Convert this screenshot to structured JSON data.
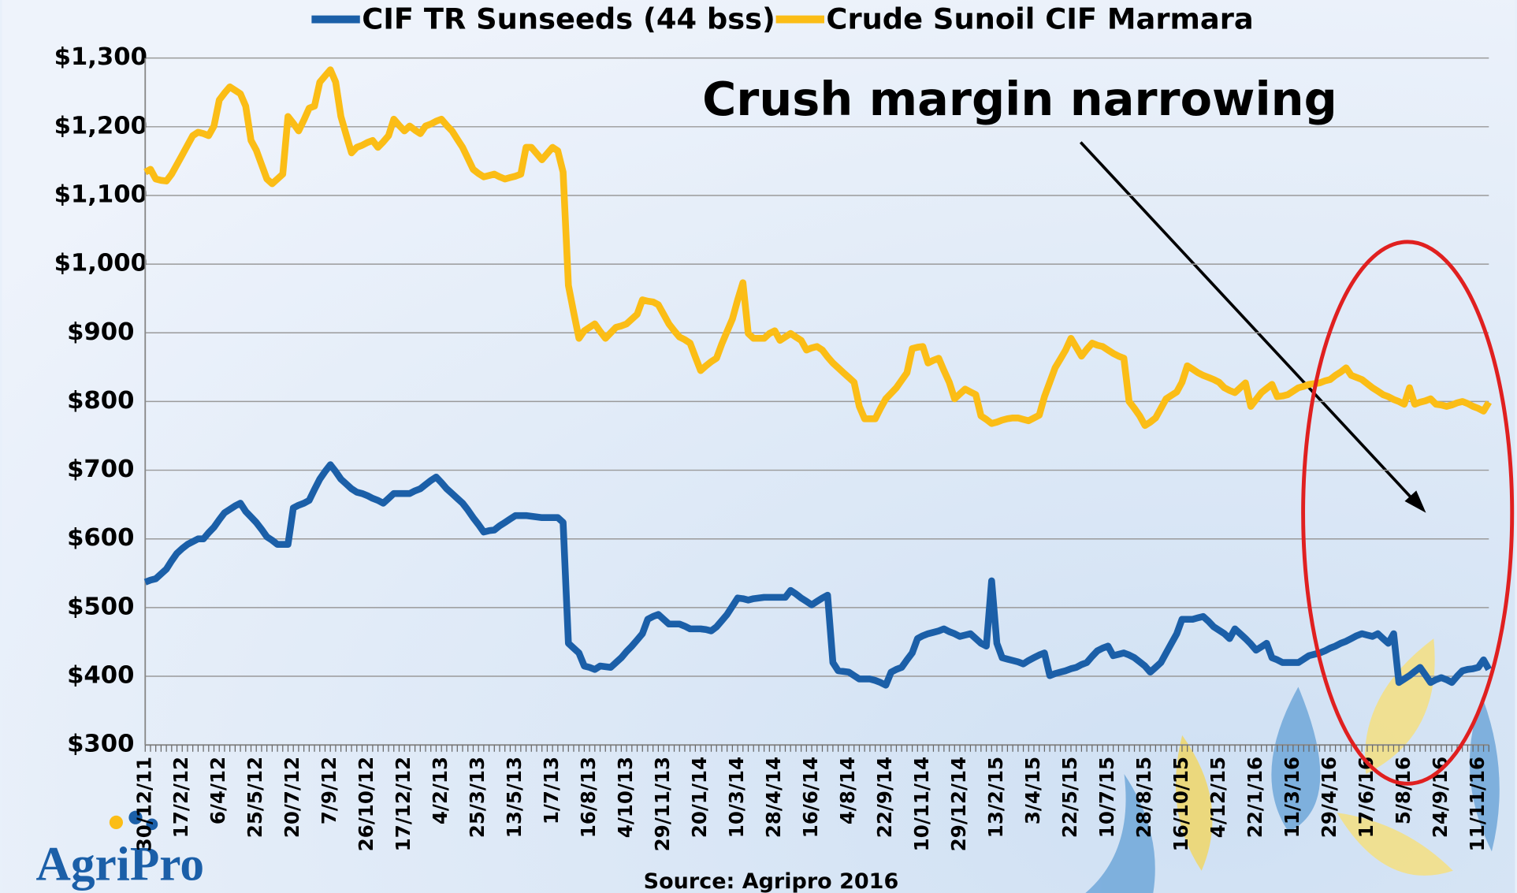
{
  "chart_data": {
    "type": "line",
    "annotation": "Crush margin narrowing",
    "source": "Source: Agripro 2016",
    "logo": "AgriPro",
    "ylim": [
      300,
      1300
    ],
    "yticks": [
      {
        "value": 300,
        "label": "$300"
      },
      {
        "value": 400,
        "label": "$400"
      },
      {
        "value": 500,
        "label": "$500"
      },
      {
        "value": 600,
        "label": "$600"
      },
      {
        "value": 700,
        "label": "$700"
      },
      {
        "value": 800,
        "label": "$800"
      },
      {
        "value": 900,
        "label": "$900"
      },
      {
        "value": 1000,
        "label": "$1,000"
      },
      {
        "value": 1100,
        "label": "$1,100"
      },
      {
        "value": 1200,
        "label": "$1,200"
      },
      {
        "value": 1300,
        "label": "$1,300"
      }
    ],
    "grid": true,
    "legend": "top",
    "categories": [
      "30/12/11",
      null,
      null,
      null,
      null,
      null,
      null,
      "17/2/12",
      null,
      null,
      null,
      null,
      null,
      null,
      "6/4/12",
      null,
      null,
      null,
      null,
      null,
      null,
      "25/5/12",
      null,
      null,
      null,
      null,
      null,
      null,
      "20/7/12",
      null,
      null,
      null,
      null,
      null,
      null,
      "7/9/12",
      null,
      null,
      null,
      null,
      null,
      null,
      "26/10/12",
      null,
      null,
      null,
      null,
      null,
      null,
      "17/12/12",
      null,
      null,
      null,
      null,
      null,
      null,
      "4/2/13",
      null,
      null,
      null,
      null,
      null,
      null,
      "25/3/13",
      null,
      null,
      null,
      null,
      null,
      null,
      "13/5/13",
      null,
      null,
      null,
      null,
      null,
      null,
      "1/7/13",
      null,
      null,
      null,
      null,
      null,
      null,
      "16/8/13",
      null,
      null,
      null,
      null,
      null,
      null,
      "4/10/13",
      null,
      null,
      null,
      null,
      null,
      null,
      "29/11/13",
      null,
      null,
      null,
      null,
      null,
      null,
      "20/1/14",
      null,
      null,
      null,
      null,
      null,
      null,
      "10/3/14",
      null,
      null,
      null,
      null,
      null,
      null,
      "28/4/14",
      null,
      null,
      null,
      null,
      null,
      null,
      "16/6/14",
      null,
      null,
      null,
      null,
      null,
      null,
      "4/8/14",
      null,
      null,
      null,
      null,
      null,
      null,
      "22/9/14",
      null,
      null,
      null,
      null,
      null,
      null,
      "10/11/14",
      null,
      null,
      null,
      null,
      null,
      null,
      "29/12/14",
      null,
      null,
      null,
      null,
      null,
      null,
      "13/2/15",
      null,
      null,
      null,
      null,
      null,
      null,
      "3/4/15",
      null,
      null,
      null,
      null,
      null,
      null,
      "22/5/15",
      null,
      null,
      null,
      null,
      null,
      null,
      "10/7/15",
      null,
      null,
      null,
      null,
      null,
      null,
      "28/8/15",
      null,
      null,
      null,
      null,
      null,
      null,
      "16/10/15",
      null,
      null,
      null,
      null,
      null,
      null,
      "4/12/15",
      null,
      null,
      null,
      null,
      null,
      null,
      "22/1/16",
      null,
      null,
      null,
      null,
      null,
      null,
      "11/3/16",
      null,
      null,
      null,
      null,
      null,
      null,
      "29/4/16",
      null,
      null,
      null,
      null,
      null,
      null,
      "17/6/16",
      null,
      null,
      null,
      null,
      null,
      null,
      "5/8/16",
      null,
      null,
      null,
      null,
      null,
      null,
      "24/9/16",
      null,
      null,
      null,
      null,
      null,
      null,
      "11/11/16",
      null,
      null
    ],
    "series": [
      {
        "name": "CIF TR Sunseeds (44 bss)",
        "color": "#1b5fa8",
        "values": [
          537,
          540,
          542,
          549,
          556,
          568,
          579,
          586,
          592,
          596,
          600,
          600,
          609,
          617,
          628,
          638,
          643,
          648,
          652,
          640,
          632,
          624,
          614,
          603,
          598,
          592,
          592,
          592,
          645,
          649,
          652,
          656,
          672,
          687,
          698,
          708,
          698,
          687,
          680,
          673,
          668,
          666,
          663,
          659,
          656,
          652,
          659,
          666,
          666,
          666,
          666,
          670,
          673,
          679,
          685,
          690,
          682,
          673,
          666,
          659,
          652,
          642,
          631,
          621,
          610,
          612,
          613,
          619,
          624,
          629,
          634,
          634,
          634,
          633,
          632,
          631,
          631,
          631,
          631,
          624,
          448,
          441,
          434,
          415,
          413,
          410,
          415,
          414,
          413,
          420,
          427,
          436,
          444,
          453,
          462,
          483,
          487,
          490,
          483,
          476,
          476,
          476,
          473,
          469,
          469,
          469,
          468,
          466,
          472,
          481,
          490,
          502,
          514,
          513,
          511,
          513,
          514,
          515,
          515,
          515,
          515,
          515,
          525,
          520,
          514,
          509,
          504,
          509,
          514,
          518,
          420,
          408,
          407,
          406,
          401,
          396,
          396,
          396,
          394,
          391,
          387,
          406,
          410,
          413,
          424,
          434,
          455,
          459,
          462,
          464,
          466,
          469,
          465,
          462,
          458,
          460,
          462,
          455,
          448,
          444,
          539,
          448,
          427,
          425,
          423,
          421,
          418,
          423,
          427,
          431,
          434,
          401,
          404,
          406,
          408,
          411,
          413,
          417,
          420,
          429,
          437,
          441,
          444,
          430,
          432,
          434,
          431,
          427,
          421,
          415,
          406,
          413,
          420,
          434,
          448,
          462,
          483,
          483,
          483,
          485,
          487,
          480,
          472,
          467,
          462,
          455,
          469,
          462,
          455,
          447,
          438,
          443,
          448,
          427,
          424,
          420,
          420,
          420,
          420,
          425,
          430,
          432,
          434,
          437,
          441,
          444,
          448,
          451,
          455,
          459,
          462,
          460,
          458,
          462,
          455,
          448,
          462,
          391,
          396,
          401,
          407,
          413,
          402,
          391,
          395,
          398,
          395,
          391,
          400,
          408,
          410,
          411,
          413,
          424,
          410
        ]
      },
      {
        "name": "Crude Sunoil CIF Marmara",
        "color": "#fbbd16",
        "values": [
          1134,
          1138,
          1124,
          1122,
          1121,
          1131,
          1145,
          1159,
          1173,
          1187,
          1192,
          1190,
          1187,
          1201,
          1239,
          1249,
          1258,
          1253,
          1248,
          1230,
          1180,
          1166,
          1145,
          1124,
          1117,
          1124,
          1131,
          1215,
          1205,
          1194,
          1210,
          1227,
          1230,
          1265,
          1274,
          1283,
          1265,
          1215,
          1188,
          1162,
          1170,
          1173,
          1177,
          1180,
          1170,
          1178,
          1187,
          1211,
          1202,
          1194,
          1201,
          1195,
          1190,
          1201,
          1204,
          1208,
          1211,
          1202,
          1194,
          1182,
          1170,
          1154,
          1138,
          1132,
          1127,
          1129,
          1131,
          1127,
          1124,
          1126,
          1128,
          1131,
          1170,
          1170,
          1161,
          1152,
          1161,
          1170,
          1165,
          1134,
          969,
          930,
          892,
          903,
          908,
          913,
          902,
          892,
          900,
          908,
          910,
          913,
          920,
          927,
          948,
          946,
          945,
          941,
          927,
          913,
          903,
          894,
          890,
          885,
          865,
          845,
          852,
          858,
          863,
          884,
          902,
          920,
          948,
          973,
          899,
          892,
          892,
          892,
          899,
          903,
          889,
          894,
          899,
          894,
          889,
          875,
          878,
          880,
          875,
          865,
          856,
          849,
          842,
          835,
          828,
          793,
          775,
          775,
          775,
          790,
          804,
          812,
          820,
          831,
          842,
          877,
          879,
          880,
          856,
          860,
          863,
          845,
          828,
          804,
          811,
          818,
          814,
          810,
          779,
          774,
          768,
          770,
          773,
          775,
          776,
          776,
          774,
          772,
          776,
          780,
          807,
          828,
          849,
          862,
          875,
          892,
          879,
          866,
          876,
          885,
          882,
          880,
          875,
          870,
          866,
          863,
          800,
          790,
          779,
          765,
          770,
          776,
          790,
          804,
          809,
          814,
          828,
          852,
          847,
          842,
          838,
          835,
          832,
          828,
          820,
          816,
          813,
          820,
          827,
          793,
          803,
          813,
          819,
          825,
          807,
          808,
          810,
          815,
          820,
          822,
          825,
          826,
          827,
          830,
          832,
          838,
          843,
          849,
          838,
          835,
          832,
          826,
          820,
          815,
          810,
          807,
          803,
          800,
          796,
          820,
          796,
          799,
          801,
          804,
          796,
          795,
          793,
          795,
          798,
          800,
          797,
          793,
          790,
          786,
          799
        ]
      }
    ]
  }
}
